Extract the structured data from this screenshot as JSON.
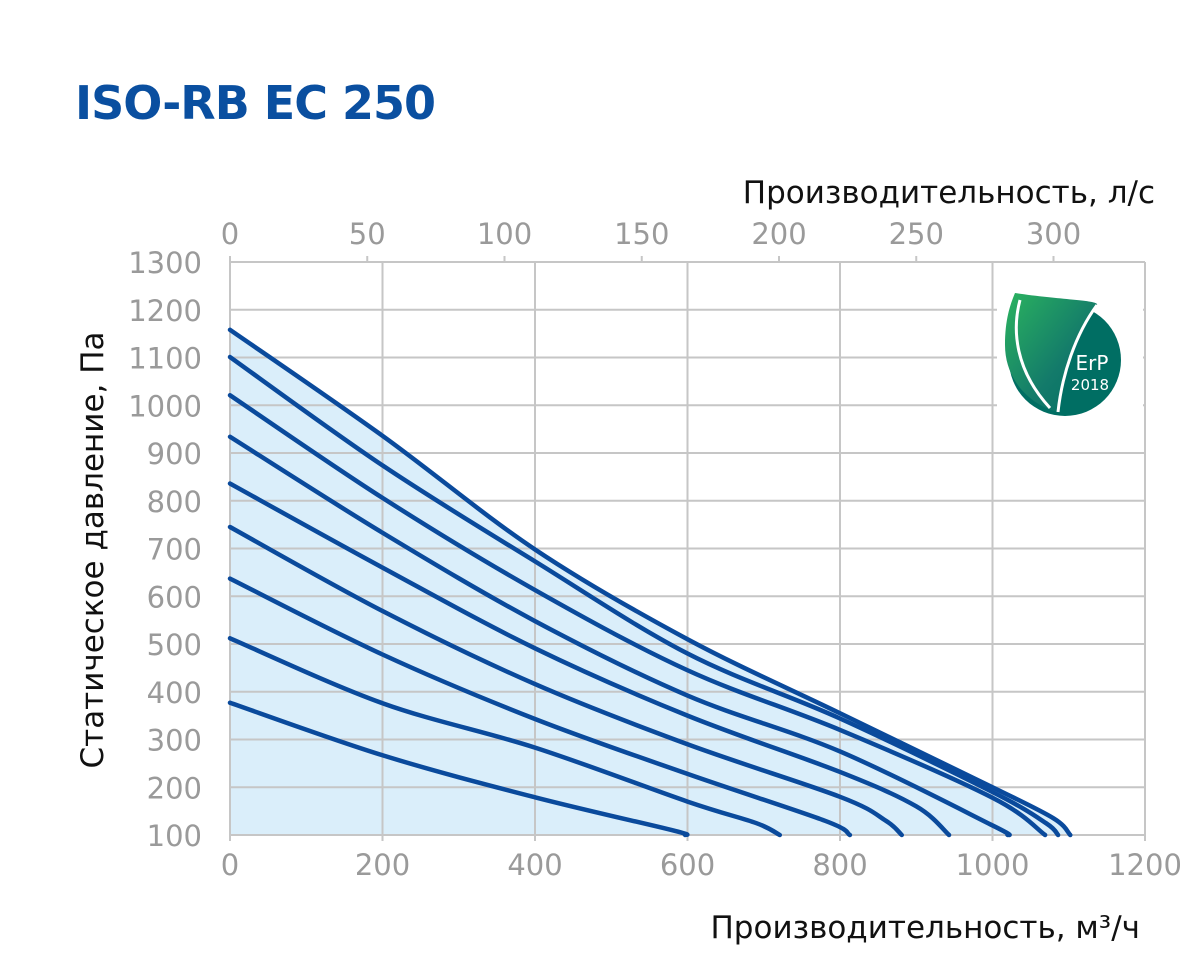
{
  "title": "ISO-RB EC 250",
  "logo": {
    "text": "ErP",
    "year": "2018",
    "colors": [
      "#2bb35f",
      "#006e63"
    ]
  },
  "colors": {
    "curve": "#0a4a9c",
    "fill": "#daeefa",
    "grid": "#c6c6c6",
    "title": "#0a4fa0"
  },
  "chart_data": {
    "type": "line",
    "title": "ISO-RB EC 250",
    "xlabel": "Производительность, м³/ч",
    "x2label": "Производительность, л/с",
    "ylabel": "Статическое давление, Па",
    "xlim": [
      0,
      1200
    ],
    "x2lim": [
      0,
      333.3
    ],
    "ylim": [
      100,
      1300
    ],
    "xticks": [
      "0",
      "200",
      "400",
      "600",
      "800",
      "1000",
      "1200"
    ],
    "x2ticks": [
      "0",
      "50",
      "100",
      "150",
      "200",
      "250",
      "300"
    ],
    "yticks": [
      "100",
      "200",
      "300",
      "400",
      "500",
      "600",
      "700",
      "800",
      "900",
      "1000",
      "1100",
      "1200",
      "1300"
    ],
    "grid": true,
    "area_fill_under_top_curve": true,
    "series": [
      {
        "points": [
          [
            0,
            1158
          ],
          [
            200,
            936
          ],
          [
            400,
            698
          ],
          [
            600,
            510
          ],
          [
            800,
            355
          ],
          [
            1000,
            200
          ],
          [
            1080,
            135
          ],
          [
            1102,
            100
          ]
        ]
      },
      {
        "points": [
          [
            0,
            1101
          ],
          [
            200,
            874
          ],
          [
            400,
            673
          ],
          [
            600,
            480
          ],
          [
            800,
            344
          ],
          [
            1000,
            190
          ],
          [
            1070,
            125
          ],
          [
            1086,
            100
          ]
        ]
      },
      {
        "points": [
          [
            0,
            1021
          ],
          [
            200,
            806
          ],
          [
            400,
            613
          ],
          [
            600,
            445
          ],
          [
            800,
            320
          ],
          [
            1000,
            178
          ],
          [
            1069,
            100
          ]
        ]
      },
      {
        "points": [
          [
            0,
            934
          ],
          [
            200,
            733
          ],
          [
            400,
            548
          ],
          [
            600,
            392
          ],
          [
            800,
            275
          ],
          [
            1000,
            120
          ],
          [
            1020,
            100
          ]
        ]
      },
      {
        "points": [
          [
            0,
            836
          ],
          [
            200,
            660
          ],
          [
            400,
            491
          ],
          [
            600,
            350
          ],
          [
            800,
            232
          ],
          [
            900,
            160
          ],
          [
            943,
            100
          ]
        ]
      },
      {
        "points": [
          [
            0,
            745
          ],
          [
            200,
            569
          ],
          [
            400,
            416
          ],
          [
            600,
            290
          ],
          [
            800,
            180
          ],
          [
            860,
            130
          ],
          [
            881,
            100
          ]
        ]
      },
      {
        "points": [
          [
            0,
            637
          ],
          [
            200,
            478
          ],
          [
            400,
            343
          ],
          [
            600,
            228
          ],
          [
            780,
            130
          ],
          [
            813,
            100
          ]
        ]
      },
      {
        "points": [
          [
            0,
            512
          ],
          [
            200,
            376
          ],
          [
            400,
            283
          ],
          [
            600,
            170
          ],
          [
            690,
            125
          ],
          [
            721,
            100
          ]
        ]
      },
      {
        "points": [
          [
            0,
            377
          ],
          [
            200,
            267
          ],
          [
            400,
            179
          ],
          [
            580,
            110
          ],
          [
            597,
            100
          ]
        ]
      }
    ]
  }
}
